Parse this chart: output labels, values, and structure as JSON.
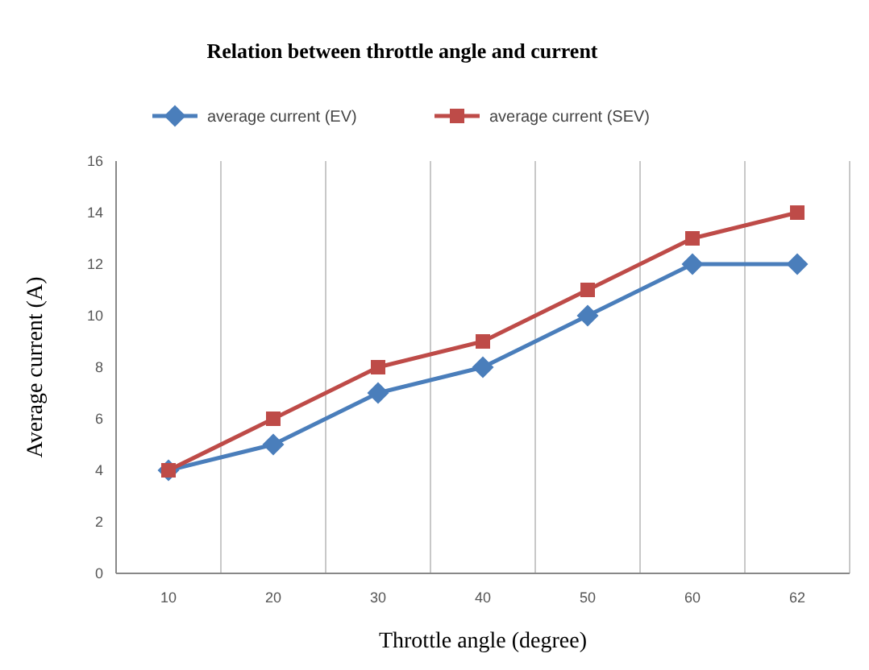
{
  "chart_data": {
    "type": "line",
    "title": "Relation between throttle angle and current",
    "xlabel": "Throttle angle (degree)",
    "ylabel": "Average current (A)",
    "categories": [
      "10",
      "20",
      "30",
      "40",
      "50",
      "60",
      "62"
    ],
    "series": [
      {
        "name": "average current (EV)",
        "color": "#4a7ebb",
        "marker": "diamond",
        "values": [
          4,
          5,
          7,
          8,
          10,
          12,
          12
        ]
      },
      {
        "name": "average current (SEV)",
        "color": "#be4b48",
        "marker": "square",
        "values": [
          4,
          6,
          8,
          9,
          11,
          13,
          14
        ]
      }
    ],
    "ylim": [
      0,
      16
    ],
    "yticks": [
      0,
      2,
      4,
      6,
      8,
      10,
      12,
      14,
      16
    ],
    "grid": "x",
    "legend": "top",
    "line_style": "solid"
  }
}
